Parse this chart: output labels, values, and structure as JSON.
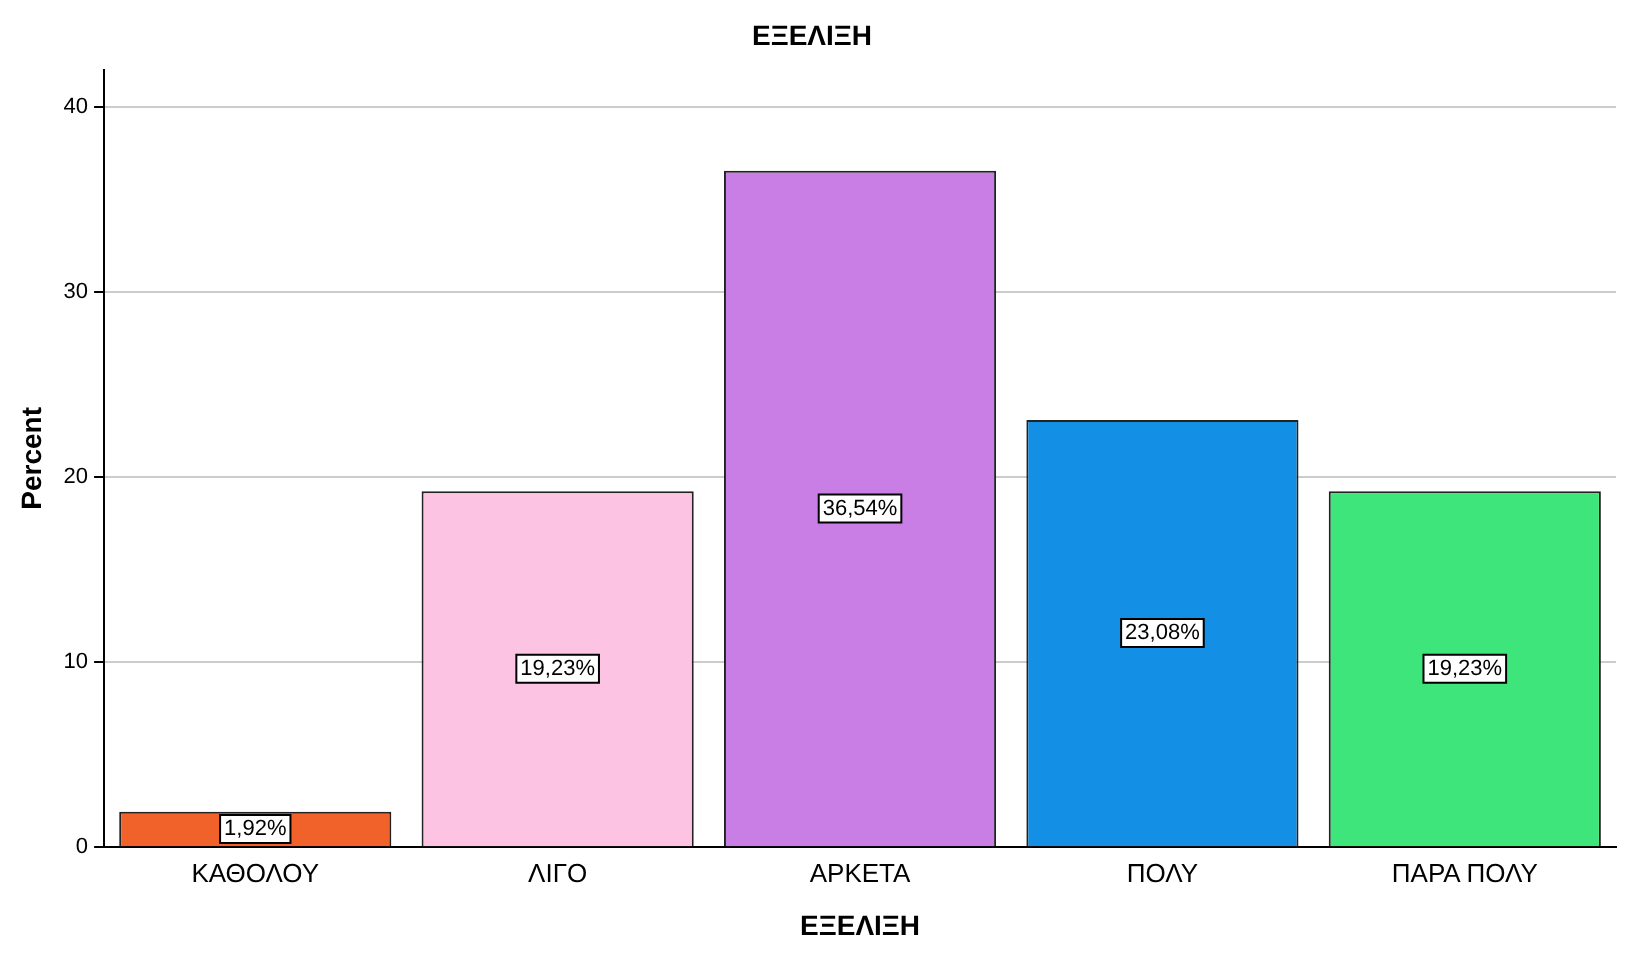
{
  "chart_data": {
    "type": "bar",
    "title": "ΕΞΕΛΙΞΗ",
    "xlabel": "ΕΞΕΛΙΞΗ",
    "ylabel": "Percent",
    "categories": [
      "ΚΑΘΟΛΟΥ",
      "ΛΙΓΟ",
      "ΑΡΚΕΤΑ",
      "ΠΟΛΥ",
      "ΠΑΡΑ ΠΟΛΥ"
    ],
    "values": [
      1.92,
      19.23,
      36.54,
      23.08,
      19.23
    ],
    "colors": [
      "#f0622a",
      "#fcc4e2",
      "#c97ee6",
      "#1390e6",
      "#3de57a"
    ],
    "value_labels": [
      "1,92%",
      "19,23%",
      "36,54%",
      "23,08%",
      "19,23%"
    ],
    "ylim": [
      0,
      42
    ],
    "yticks": [
      0,
      10,
      20,
      30,
      40
    ],
    "grid": "y",
    "legend": false
  }
}
